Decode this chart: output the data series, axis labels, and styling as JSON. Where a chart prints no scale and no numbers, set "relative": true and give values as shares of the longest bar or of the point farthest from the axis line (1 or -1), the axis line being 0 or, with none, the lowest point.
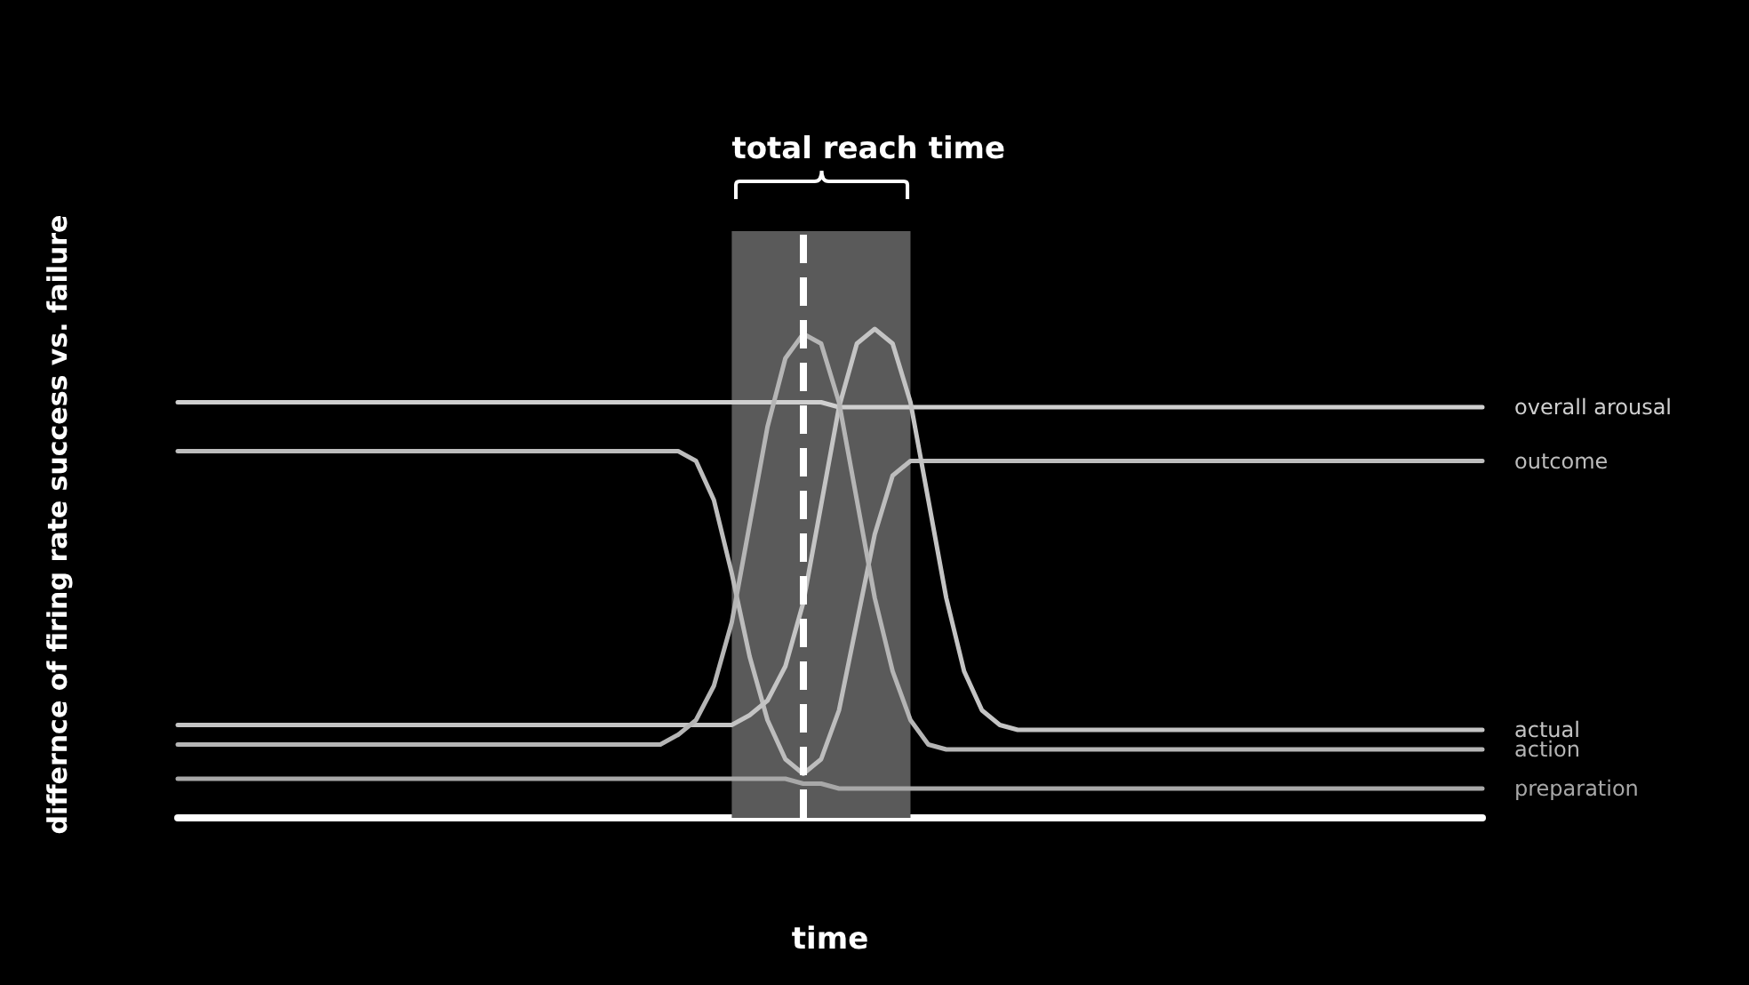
{
  "chart_data": {
    "type": "line",
    "relative": true,
    "xlabel": "time",
    "ylabel": "differnce of firing rate success vs. failure",
    "annotations": [
      "total reach time"
    ],
    "legend": false,
    "grid": false,
    "marker": "none",
    "line_style": "solid",
    "categories": [
      null,
      null,
      null,
      null,
      null,
      null,
      null,
      null,
      null,
      null,
      null,
      null,
      null,
      null,
      null,
      null,
      null,
      null,
      null,
      null,
      null,
      null,
      null,
      null,
      null,
      null,
      null,
      null,
      null,
      null,
      null,
      null,
      null,
      null,
      null,
      null,
      null,
      null,
      null,
      null,
      null,
      null,
      null,
      null,
      null,
      null,
      null,
      null,
      null,
      null,
      null,
      null,
      null,
      null,
      null,
      null,
      null,
      null,
      null,
      null,
      null,
      null,
      null,
      null,
      null,
      null,
      null,
      null,
      null,
      null,
      null,
      null,
      null,
      null
    ],
    "series": [
      {
        "name": "overall arousal",
        "color": "#cfcfcf",
        "values": [
          0.85,
          0.85,
          0.85,
          0.85,
          0.85,
          0.85,
          0.85,
          0.85,
          0.85,
          0.85,
          0.85,
          0.85,
          0.85,
          0.85,
          0.85,
          0.85,
          0.85,
          0.85,
          0.85,
          0.85,
          0.85,
          0.85,
          0.85,
          0.85,
          0.85,
          0.85,
          0.85,
          0.85,
          0.85,
          0.85,
          0.85,
          0.85,
          0.85,
          0.85,
          0.85,
          0.85,
          0.85,
          0.84,
          0.84,
          0.84,
          0.84,
          0.84,
          0.84,
          0.84,
          0.84,
          0.84,
          0.84,
          0.84,
          0.84,
          0.84,
          0.84,
          0.84,
          0.84,
          0.84,
          0.84,
          0.84,
          0.84,
          0.84,
          0.84,
          0.84,
          0.84,
          0.84,
          0.84,
          0.84,
          0.84,
          0.84,
          0.84,
          0.84,
          0.84,
          0.84,
          0.84,
          0.84,
          0.84,
          0.84
        ]
      },
      {
        "name": "outcome",
        "color": "#bdbdbd",
        "values": [
          0.75,
          0.75,
          0.75,
          0.75,
          0.75,
          0.75,
          0.75,
          0.75,
          0.75,
          0.75,
          0.75,
          0.75,
          0.75,
          0.75,
          0.75,
          0.75,
          0.75,
          0.75,
          0.75,
          0.75,
          0.75,
          0.75,
          0.75,
          0.75,
          0.75,
          0.75,
          0.75,
          0.75,
          0.75,
          0.73,
          0.65,
          0.5,
          0.33,
          0.2,
          0.12,
          0.09,
          0.12,
          0.22,
          0.4,
          0.58,
          0.7,
          0.73,
          0.73,
          0.73,
          0.73,
          0.73,
          0.73,
          0.73,
          0.73,
          0.73,
          0.73,
          0.73,
          0.73,
          0.73,
          0.73,
          0.73,
          0.73,
          0.73,
          0.73,
          0.73,
          0.73,
          0.73,
          0.73,
          0.73,
          0.73,
          0.73,
          0.73,
          0.73,
          0.73,
          0.73,
          0.73,
          0.73,
          0.73,
          0.73
        ]
      },
      {
        "name": "actual",
        "color": "#c4c4c4",
        "values": [
          0.19,
          0.19,
          0.19,
          0.19,
          0.19,
          0.19,
          0.19,
          0.19,
          0.19,
          0.19,
          0.19,
          0.19,
          0.19,
          0.19,
          0.19,
          0.19,
          0.19,
          0.19,
          0.19,
          0.19,
          0.19,
          0.19,
          0.19,
          0.19,
          0.19,
          0.19,
          0.19,
          0.19,
          0.19,
          0.19,
          0.19,
          0.19,
          0.21,
          0.24,
          0.31,
          0.44,
          0.64,
          0.84,
          0.97,
          1,
          0.97,
          0.85,
          0.65,
          0.45,
          0.3,
          0.22,
          0.19,
          0.18,
          0.18,
          0.18,
          0.18,
          0.18,
          0.18,
          0.18,
          0.18,
          0.18,
          0.18,
          0.18,
          0.18,
          0.18,
          0.18,
          0.18,
          0.18,
          0.18,
          0.18,
          0.18,
          0.18,
          0.18,
          0.18,
          0.18,
          0.18,
          0.18,
          0.18,
          0.18
        ]
      },
      {
        "name": "action",
        "color": "#b5b5b5",
        "values": [
          0.15,
          0.15,
          0.15,
          0.15,
          0.15,
          0.15,
          0.15,
          0.15,
          0.15,
          0.15,
          0.15,
          0.15,
          0.15,
          0.15,
          0.15,
          0.15,
          0.15,
          0.15,
          0.15,
          0.15,
          0.15,
          0.15,
          0.15,
          0.15,
          0.15,
          0.15,
          0.15,
          0.15,
          0.17,
          0.2,
          0.27,
          0.4,
          0.6,
          0.8,
          0.94,
          0.99,
          0.97,
          0.85,
          0.65,
          0.45,
          0.3,
          0.2,
          0.15,
          0.14,
          0.14,
          0.14,
          0.14,
          0.14,
          0.14,
          0.14,
          0.14,
          0.14,
          0.14,
          0.14,
          0.14,
          0.14,
          0.14,
          0.14,
          0.14,
          0.14,
          0.14,
          0.14,
          0.14,
          0.14,
          0.14,
          0.14,
          0.14,
          0.14,
          0.14,
          0.14,
          0.14,
          0.14,
          0.14,
          0.14
        ]
      },
      {
        "name": "preparation",
        "color": "#a8a8a8",
        "values": [
          0.08,
          0.08,
          0.08,
          0.08,
          0.08,
          0.08,
          0.08,
          0.08,
          0.08,
          0.08,
          0.08,
          0.08,
          0.08,
          0.08,
          0.08,
          0.08,
          0.08,
          0.08,
          0.08,
          0.08,
          0.08,
          0.08,
          0.08,
          0.08,
          0.08,
          0.08,
          0.08,
          0.08,
          0.08,
          0.08,
          0.08,
          0.08,
          0.08,
          0.08,
          0.08,
          0.07,
          0.07,
          0.06,
          0.06,
          0.06,
          0.06,
          0.06,
          0.06,
          0.06,
          0.06,
          0.06,
          0.06,
          0.06,
          0.06,
          0.06,
          0.06,
          0.06,
          0.06,
          0.06,
          0.06,
          0.06,
          0.06,
          0.06,
          0.06,
          0.06,
          0.06,
          0.06,
          0.06,
          0.06,
          0.06,
          0.06,
          0.06,
          0.06,
          0.06,
          0.06,
          0.06,
          0.06,
          0.06,
          0.06
        ]
      }
    ]
  }
}
